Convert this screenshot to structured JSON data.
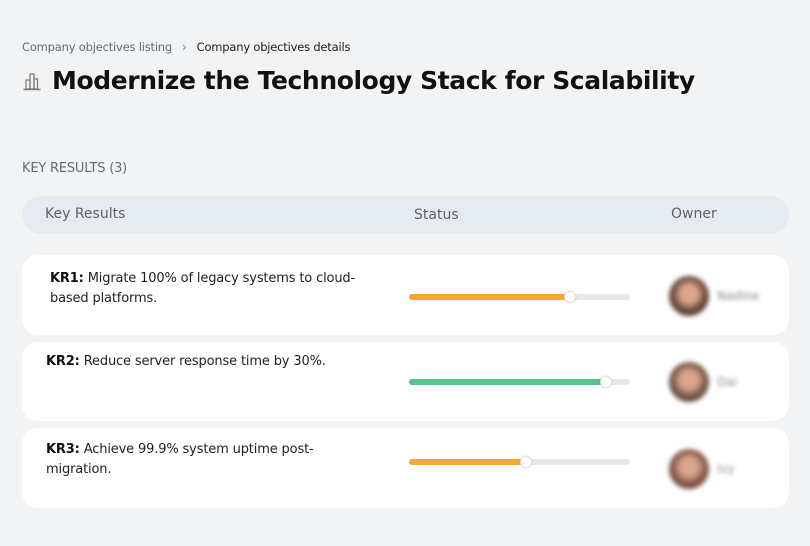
{
  "breadcrumb": {
    "items": [
      {
        "label": "Company objectives listing"
      },
      {
        "label": "Company objectives details"
      }
    ],
    "separator": "›"
  },
  "page": {
    "title": "Modernize the Technology Stack for Scalability",
    "title_icon": "buildings-icon"
  },
  "key_results": {
    "section_label": "KEY RESULTS (3)",
    "columns": {
      "key_results": "Key Results",
      "status": "Status",
      "owner": "Owner"
    },
    "items": [
      {
        "id": "KR1:",
        "text": " Migrate 100% of legacy systems to cloud-based platforms.",
        "progress": 73,
        "color": "#fba62f",
        "owner": "Nadine",
        "avatar_color": "#6b4a3e"
      },
      {
        "id": "KR2:",
        "text": " Reduce server response time by 30%.",
        "progress": 89,
        "color": "#58c48c",
        "owner": "Dai",
        "avatar_color": "#7a5a48"
      },
      {
        "id": "KR3:",
        "text": " Achieve 99.9% system uptime post-migration.",
        "progress": 53,
        "color": "#fba62f",
        "owner": "Ivy",
        "avatar_color": "#8b5a4c"
      }
    ]
  },
  "colors": {
    "background": "#f2f3f5",
    "header_pill": "#e6ebf1",
    "card": "#ffffff",
    "track": "#e7e7e7",
    "warning": "#fba62f",
    "success": "#58c48c"
  }
}
